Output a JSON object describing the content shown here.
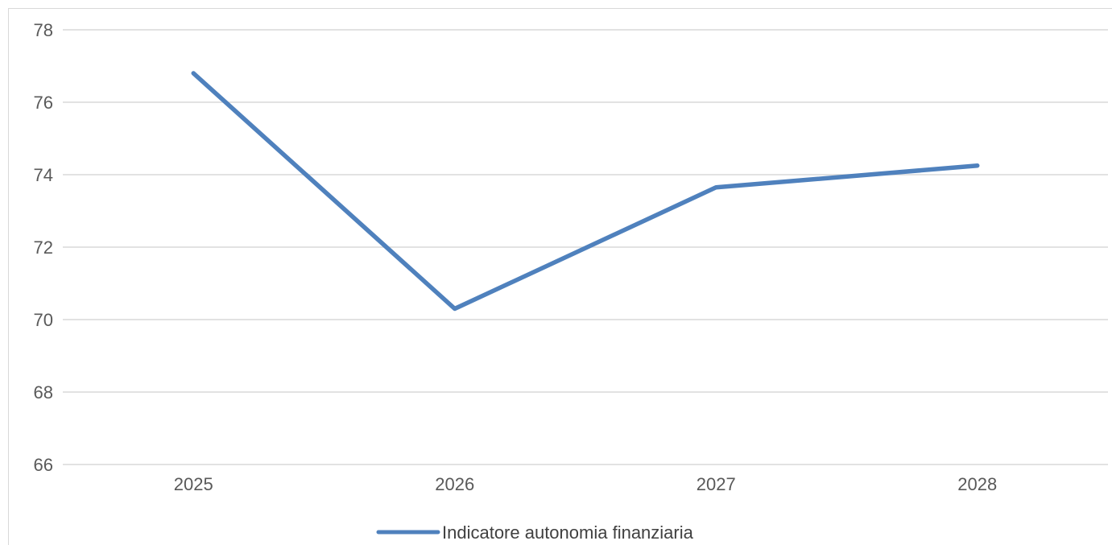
{
  "chart_data": {
    "type": "line",
    "categories": [
      "2025",
      "2026",
      "2027",
      "2028"
    ],
    "series": [
      {
        "name": "Indicatore autonomia finanziaria",
        "values": [
          76.8,
          70.3,
          73.65,
          74.25
        ],
        "color": "#4f81bd"
      }
    ],
    "title": "",
    "xlabel": "",
    "ylabel": "",
    "ylim": [
      66,
      78
    ],
    "yticks": [
      "66",
      "68",
      "70",
      "72",
      "74",
      "76",
      "78"
    ],
    "grid": true,
    "legend_position": "bottom"
  }
}
